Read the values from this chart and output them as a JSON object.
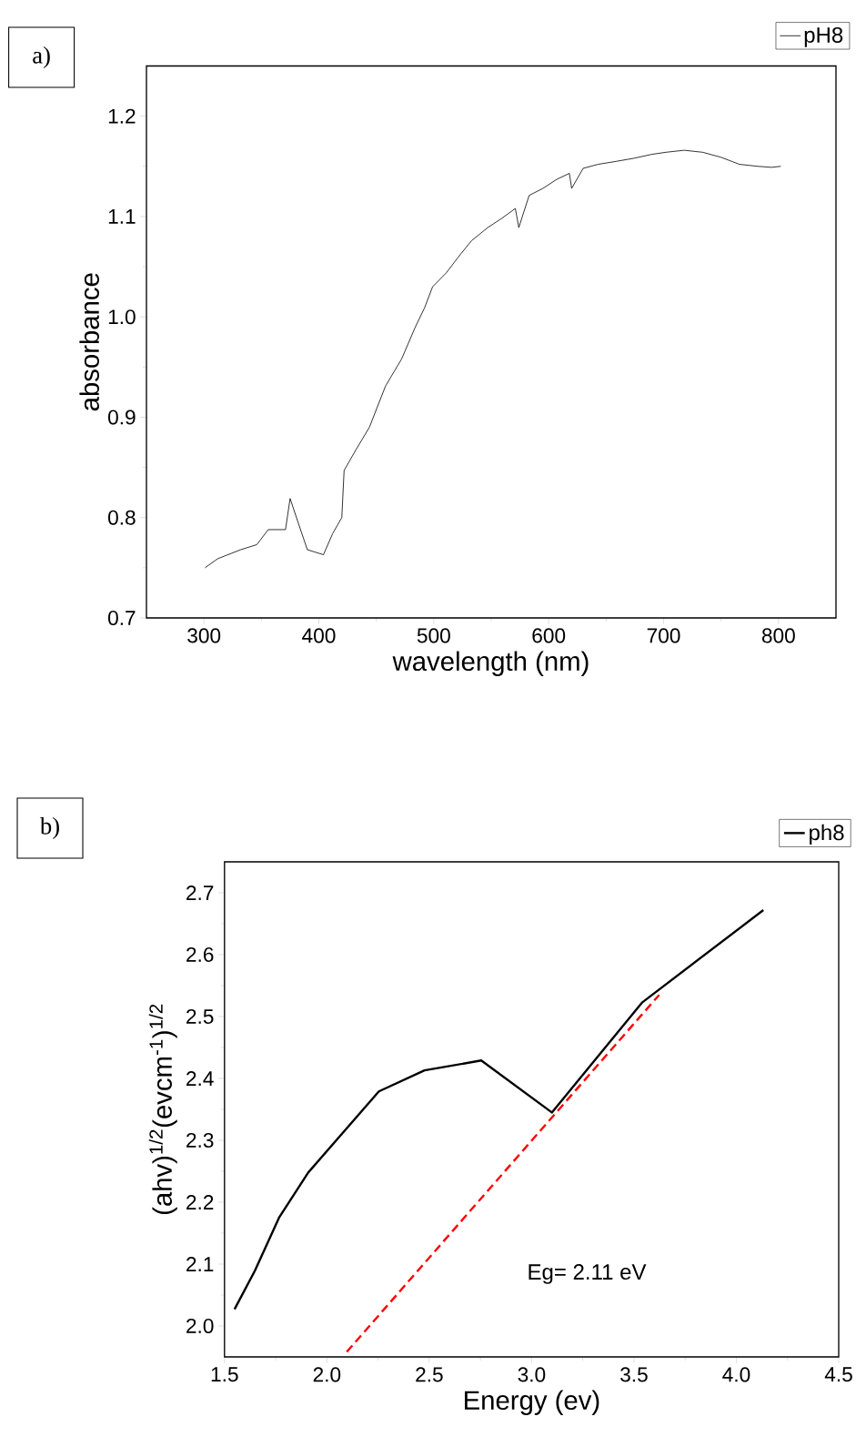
{
  "chart_data": [
    {
      "type": "line",
      "xlabel": "wavelength (nm)",
      "ylabel": "absorbance",
      "annotations": [
        "a)"
      ],
      "xlim": [
        250,
        850
      ],
      "ylim": [
        0.7,
        1.25
      ],
      "xticks": [
        300,
        400,
        500,
        600,
        700,
        800
      ],
      "yticks": [
        0.7,
        0.8,
        0.9,
        {
          "value": 1.0,
          "label": "1.0"
        },
        1.1,
        1.2
      ],
      "legend": "top right",
      "series": [
        {
          "name": "pH8",
          "color": "#000000",
          "x": [
            301,
            312,
            332,
            346,
            356,
            371,
            375,
            382,
            390,
            404,
            412,
            420,
            422,
            432,
            444,
            458,
            472,
            484,
            492,
            499,
            511,
            523,
            533,
            547,
            559,
            571,
            574,
            583,
            595,
            607,
            618,
            620,
            630,
            643,
            659,
            674,
            690,
            702,
            718,
            734,
            750,
            766,
            782,
            794,
            802
          ],
          "values": [
            0.75,
            0.759,
            0.768,
            0.773,
            0.788,
            0.788,
            0.819,
            0.795,
            0.768,
            0.763,
            0.784,
            0.8,
            0.847,
            0.867,
            0.89,
            0.931,
            0.958,
            0.99,
            1.009,
            1.03,
            1.044,
            1.062,
            1.076,
            1.089,
            1.098,
            1.108,
            1.089,
            1.121,
            1.128,
            1.137,
            1.143,
            1.128,
            1.148,
            1.152,
            1.155,
            1.158,
            1.162,
            1.164,
            1.166,
            1.164,
            1.159,
            1.152,
            1.15,
            1.149,
            1.15
          ]
        }
      ]
    },
    {
      "type": "line",
      "xlabel": "Energy (ev)",
      "ylabel": "(ahv)$^{1/2}$(evcm$^{-1}$)$^{1/2}$",
      "annotations": [
        "b)",
        "Eg= 2.11 eV"
      ],
      "xlim": [
        1.5,
        4.5
      ],
      "ylim": [
        1.95,
        2.75
      ],
      "xticks": [
        1.5,
        {
          "value": 2.0,
          "label": "2.0"
        },
        2.5,
        {
          "value": 3.0,
          "label": "3.0"
        },
        3.5,
        {
          "value": 4.0,
          "label": "4.0"
        },
        4.5
      ],
      "yticks": [
        {
          "value": 2.0,
          "label": "2.0"
        },
        2.1,
        2.2,
        2.3,
        2.4,
        2.5,
        2.6,
        2.7
      ],
      "legend": "top right",
      "series": [
        {
          "name": "ph8",
          "color": "#000000",
          "x": [
            1.549,
            1.648,
            1.768,
            1.909,
            2.254,
            2.477,
            2.754,
            3.099,
            3.541,
            4.132
          ],
          "values": [
            2.027,
            2.089,
            2.176,
            2.248,
            2.379,
            2.413,
            2.429,
            2.345,
            2.523,
            2.672
          ]
        },
        {
          "type": "line",
          "color": "#ff0000",
          "line_style": "dashed",
          "x": [
            2.097,
            3.623
          ],
          "values": [
            1.958,
            2.535
          ]
        }
      ]
    }
  ]
}
